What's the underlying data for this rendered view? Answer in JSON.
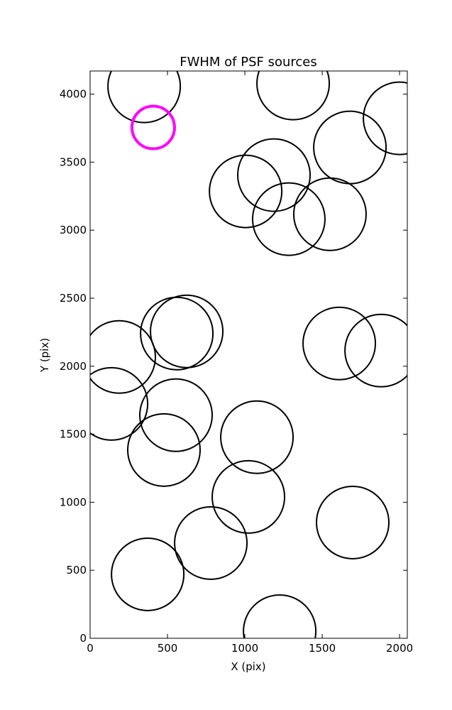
{
  "chart_data": {
    "type": "scatter",
    "title": "FWHM of PSF sources",
    "x_label": "X (pix)",
    "y_label": "Y (pix)",
    "xlim": [
      0,
      2050
    ],
    "ylim": [
      0,
      4170
    ],
    "xticks": [
      0,
      500,
      1000,
      1500,
      2000
    ],
    "yticks": [
      0,
      500,
      1000,
      1500,
      2000,
      2500,
      3000,
      3500,
      4000
    ],
    "series": [
      {
        "color": "#000000",
        "marker_size": 51,
        "line_width": 2,
        "x": [
          349,
          1312,
          2000,
          1679,
          1188,
          1005,
          1284,
          1550,
          624,
          560,
          188,
          1610,
          1881,
          138,
          555,
          477,
          1078,
          1023,
          780,
          372,
          1697,
          1225
        ],
        "values": [
          4057,
          4078,
          3822,
          3608,
          3405,
          3285,
          3081,
          3117,
          2256,
          2240,
          2068,
          2167,
          2115,
          1723,
          1640,
          1384,
          1478,
          1039,
          700,
          470,
          851,
          52
        ]
      },
      {
        "color": "#ff00ff",
        "marker_size": 30,
        "line_width": 4,
        "x": [
          408
        ],
        "values": [
          3755
        ]
      }
    ]
  }
}
